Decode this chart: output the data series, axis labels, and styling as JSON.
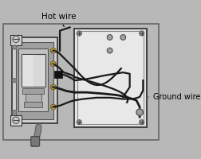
{
  "bg_color": "#b8b8b8",
  "border_color": "#666666",
  "box_bg": "#e8e8e8",
  "box_border": "#444444",
  "switch_bg": "#cccccc",
  "switch_border": "#333333",
  "wire_dark": "#1a1a1a",
  "wire_med": "#444444",
  "metal_light": "#d0d0d0",
  "metal_mid": "#a0a0a0",
  "metal_dark": "#707070",
  "screw_color": "#909090",
  "title_text": "Hot wire",
  "label_ground": "Ground wire",
  "title_fontsize": 7.5,
  "label_fontsize": 7,
  "fig_width": 2.52,
  "fig_height": 2.0,
  "dpi": 100
}
